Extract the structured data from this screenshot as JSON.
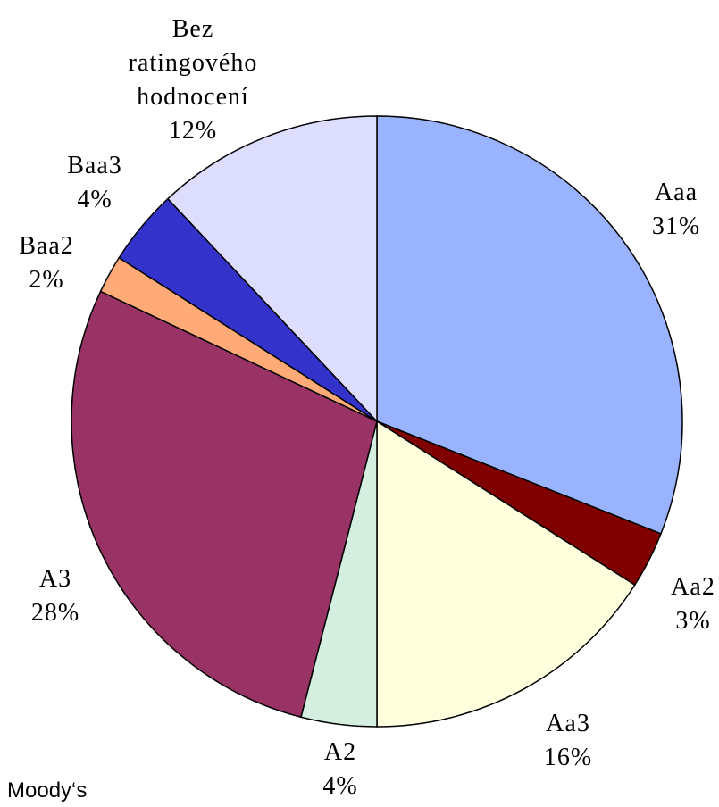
{
  "chart_data": {
    "type": "pie",
    "title": "Moody‘s",
    "categories": [
      "Aaa",
      "Aa2",
      "Aa3",
      "A2",
      "A3",
      "Baa2",
      "Baa3",
      "Bez ratingového hodnocení"
    ],
    "values": [
      31,
      3,
      16,
      4,
      28,
      2,
      4,
      12
    ],
    "value_labels": [
      "31%",
      "3%",
      "16%",
      "4%",
      "28%",
      "2%",
      "4%",
      "12%"
    ],
    "colors": [
      "#99b3ff",
      "#800000",
      "#ffffdd",
      "#d4efe0",
      "#993366",
      "#ffaa77",
      "#3333cc",
      "#ddddff"
    ]
  }
}
